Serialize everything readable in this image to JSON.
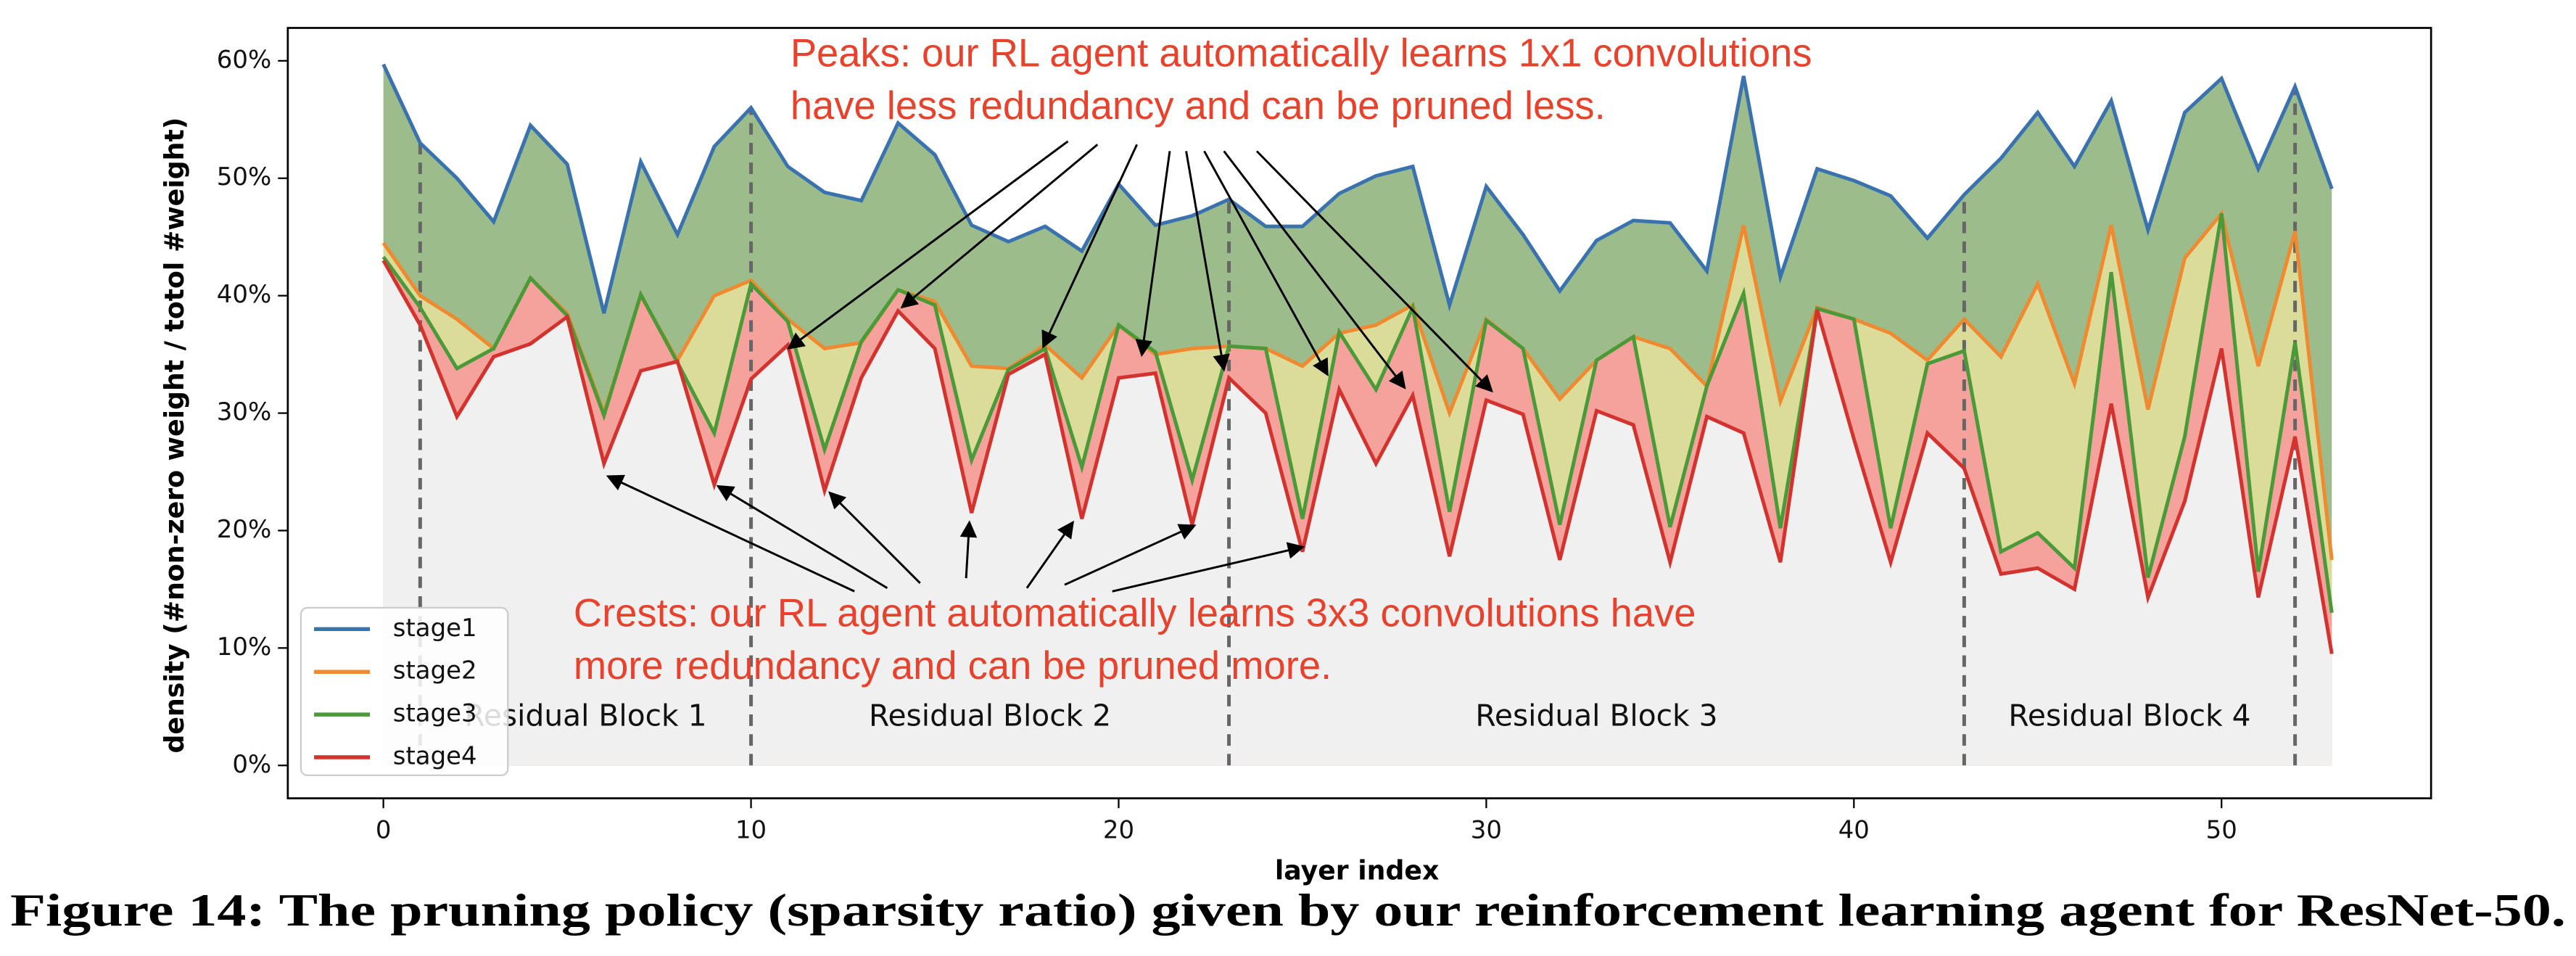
{
  "chart_data": {
    "type": "area_line",
    "xlabel": "layer index",
    "ylabel": "density (#non-zero weight / totol #weight)",
    "caption": "Figure 14: The pruning policy (sparsity ratio) given by our reinforcement learning agent for ResNet-50.",
    "x": [
      0,
      1,
      2,
      3,
      4,
      5,
      6,
      7,
      8,
      9,
      10,
      11,
      12,
      13,
      14,
      15,
      16,
      17,
      18,
      19,
      20,
      21,
      22,
      23,
      24,
      25,
      26,
      27,
      28,
      29,
      30,
      31,
      32,
      33,
      34,
      35,
      36,
      37,
      38,
      39,
      40,
      41,
      42,
      43,
      44,
      45,
      46,
      47,
      48,
      49,
      50,
      51,
      52,
      53
    ],
    "xlim": [
      -2.6,
      55.7
    ],
    "xticks": [
      0,
      10,
      20,
      30,
      40,
      50
    ],
    "ylim": [
      -2.8,
      62.8
    ],
    "yticks": [
      {
        "value": 0,
        "label": "0%"
      },
      {
        "value": 10,
        "label": "10%"
      },
      {
        "value": 20,
        "label": "20%"
      },
      {
        "value": 30,
        "label": "30%"
      },
      {
        "value": 40,
        "label": "40%"
      },
      {
        "value": 50,
        "label": "50%"
      },
      {
        "value": 60,
        "label": "60%"
      }
    ],
    "legend": "lower left",
    "base_fill": "#f0f0f0",
    "series": [
      {
        "name": "stage1",
        "color": "#3a72b0",
        "fill": "#9cbd8b",
        "values": [
          59.7,
          53,
          50,
          46.3,
          54.5,
          51.2,
          38.5,
          51.4,
          45.2,
          52.7,
          56,
          51,
          48.8,
          48.1,
          54.7,
          52,
          46,
          44.6,
          45.9,
          43.8,
          49.5,
          46,
          46.8,
          48.2,
          45.9,
          45.9,
          48.7,
          50.2,
          51,
          39.2,
          49.3,
          45.2,
          40.4,
          44.7,
          46.4,
          46.2,
          42.1,
          58.7,
          41.6,
          50.8,
          49.8,
          48.5,
          44.9,
          48.6,
          51.7,
          55.6,
          51,
          56.6,
          45.6,
          55.6,
          58.5,
          50.8,
          57.8,
          49.1
        ]
      },
      {
        "name": "stage2",
        "color": "#f08a30",
        "fill": "#dcdc9a",
        "values": [
          44.5,
          40,
          38,
          35.5,
          41.5,
          38.5,
          30,
          40,
          34.5,
          40,
          41.3,
          38,
          35.5,
          36,
          40.5,
          39.5,
          34,
          33.8,
          35.8,
          33,
          37.5,
          35,
          35.5,
          35.7,
          35.5,
          34,
          36.8,
          37.5,
          39.2,
          30,
          38,
          35.5,
          31.2,
          34.5,
          36.5,
          35.5,
          32.3,
          46,
          31,
          39,
          38,
          36.8,
          34.5,
          38,
          34.8,
          41,
          32.5,
          46,
          30.3,
          43.2,
          47,
          34,
          45.5,
          17.5
        ]
      },
      {
        "name": "stage3",
        "color": "#4a9a3a",
        "fill": "#f4a29b",
        "values": [
          43.3,
          39,
          33.8,
          35.5,
          41.5,
          38.3,
          29.8,
          40.1,
          34.3,
          28.3,
          41,
          37.8,
          26.9,
          36.1,
          40.5,
          39.2,
          26,
          33.7,
          35.5,
          25.4,
          37.5,
          35.2,
          24.3,
          35.7,
          35.5,
          21,
          36.9,
          32,
          39,
          21.6,
          37.9,
          35.5,
          20.5,
          34.5,
          36.5,
          20.3,
          32.3,
          40.2,
          20.2,
          38.9,
          38,
          20.2,
          34.2,
          35.3,
          18.2,
          19.8,
          16.8,
          42,
          16,
          28,
          47,
          16.5,
          36,
          13
        ]
      },
      {
        "name": "stage4",
        "color": "#d2332e",
        "fill": "#f0f0f0",
        "values": [
          43,
          37.5,
          29.7,
          34.8,
          35.9,
          38.2,
          25.7,
          33.6,
          34.4,
          23.9,
          32.9,
          35.8,
          23.4,
          33,
          38.7,
          35.5,
          21.5,
          33.3,
          35,
          21,
          33,
          33.4,
          20.5,
          33,
          30,
          18.2,
          32,
          25.7,
          31.5,
          17.8,
          31.1,
          29.9,
          17.5,
          30.2,
          29,
          17.3,
          29.7,
          28.3,
          17.3,
          38.8,
          27.8,
          17.3,
          28.3,
          25.3,
          16.3,
          16.8,
          15,
          30.8,
          14.3,
          22.5,
          35.5,
          14.3,
          28,
          9.5
        ]
      }
    ],
    "block_dividers": [
      1,
      10,
      23,
      43,
      52
    ],
    "block_labels": [
      "Residual Block 1",
      "Residual Block 2",
      "Residual Block 3",
      "Residual Block 4"
    ],
    "peaks_annotation": [
      "Peaks: our RL agent automatically learns 1x1 convolutions",
      "have less redundancy and can be pruned less."
    ],
    "crests_annotation": [
      "Crests: our RL agent automatically learns 3x3 convolutions have",
      "more redundancy and can be pruned more."
    ]
  }
}
